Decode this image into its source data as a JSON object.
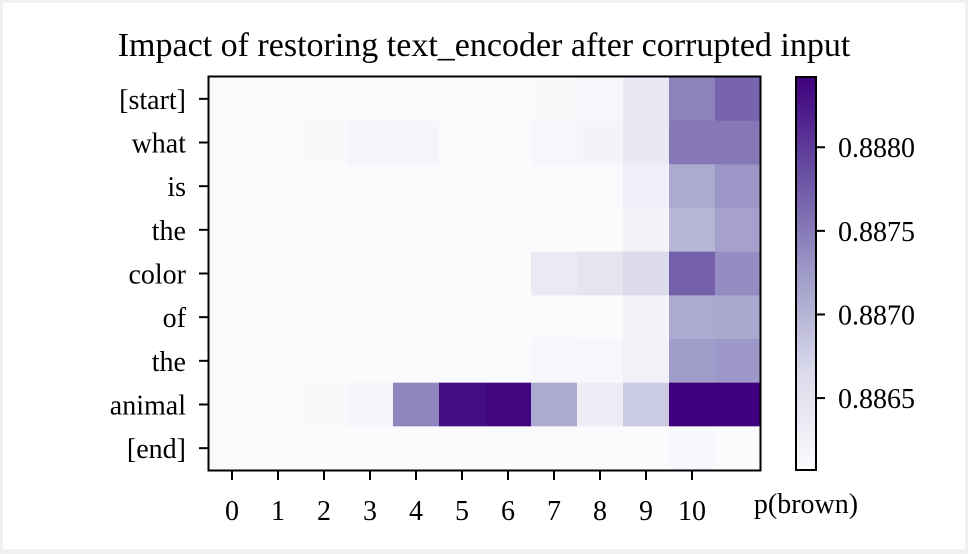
{
  "chart_data": {
    "type": "heatmap",
    "title": "Impact of restoring text_encoder after corrupted input",
    "xlabel": "",
    "ylabel": "",
    "x_tick_labels": [
      "0",
      "1",
      "2",
      "3",
      "4",
      "5",
      "6",
      "7",
      "8",
      "9",
      "10"
    ],
    "y_tick_labels": [
      "[start]",
      "what",
      "is",
      "the",
      "color",
      "of",
      "the",
      "animal",
      "[end]"
    ],
    "x_extra_label": "p(brown)",
    "colormap": "Purples",
    "color_range": [
      0.88607,
      0.88842
    ],
    "colorbar_ticks": [
      0.8865,
      0.887,
      0.8875,
      0.888
    ],
    "colorbar_tick_labels": [
      "0.8865",
      "0.8870",
      "0.8875",
      "0.8880"
    ],
    "values": [
      [
        0.88608,
        0.88608,
        0.88608,
        0.88608,
        0.88608,
        0.88608,
        0.88608,
        0.88612,
        0.88616,
        0.8864,
        0.88744,
        0.88768
      ],
      [
        0.8861,
        0.88611,
        0.88613,
        0.88617,
        0.88617,
        0.88608,
        0.88608,
        0.88616,
        0.88622,
        0.8864,
        0.88752,
        0.88752
      ],
      [
        0.88608,
        0.88609,
        0.88609,
        0.88611,
        0.88608,
        0.88608,
        0.88608,
        0.8861,
        0.8861,
        0.88628,
        0.8871,
        0.88728
      ],
      [
        0.88608,
        0.88608,
        0.88608,
        0.88608,
        0.88608,
        0.88608,
        0.88608,
        0.88608,
        0.88609,
        0.88622,
        0.887,
        0.88718
      ],
      [
        0.88611,
        0.88608,
        0.88608,
        0.88608,
        0.88608,
        0.88608,
        0.88608,
        0.88637,
        0.88647,
        0.88664,
        0.88772,
        0.88735
      ],
      [
        0.88608,
        0.88608,
        0.88608,
        0.88608,
        0.88608,
        0.88608,
        0.88608,
        0.8861,
        0.88608,
        0.88622,
        0.8871,
        0.88712
      ],
      [
        0.88608,
        0.88608,
        0.88608,
        0.88608,
        0.88608,
        0.88608,
        0.88608,
        0.88614,
        0.88616,
        0.88624,
        0.88723,
        0.88726
      ],
      [
        0.88608,
        0.8861,
        0.88612,
        0.88617,
        0.88741,
        0.88833,
        0.88838,
        0.8871,
        0.88632,
        0.8868,
        0.88848,
        0.88878
      ],
      [
        0.88608,
        0.88608,
        0.88608,
        0.88608,
        0.88608,
        0.88608,
        0.88608,
        0.88608,
        0.88608,
        0.88609,
        0.88614,
        0.88608
      ]
    ]
  }
}
